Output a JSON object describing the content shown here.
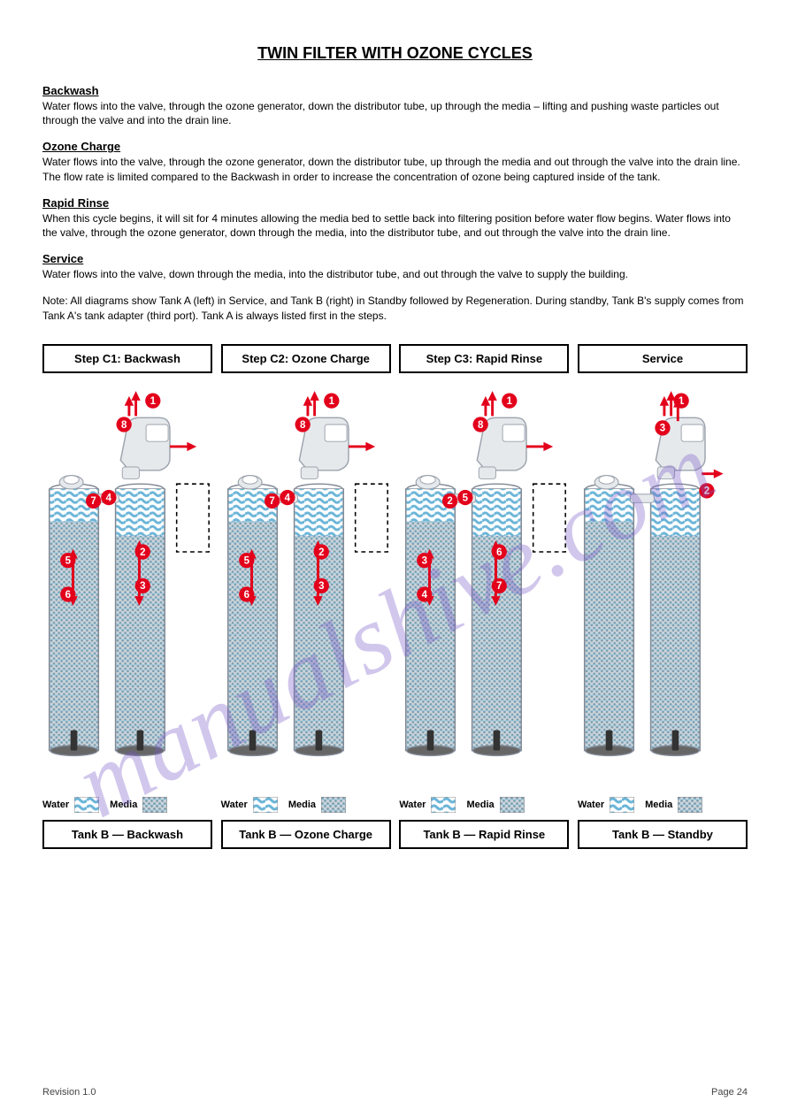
{
  "title": "TWIN FILTER WITH OZONE CYCLES",
  "phases": [
    {
      "id": "backwash",
      "label": "Backwash",
      "desc": "Water flows into the valve, through the ozone generator, down the distributor tube, up through the media – lifting and pushing waste particles out through the valve and into the drain line."
    },
    {
      "id": "ozone-charge",
      "label": "Ozone Charge",
      "desc": "Water flows into the valve, through the ozone generator, down the distributor tube, up through the media and out through the valve into the drain line. The flow rate is limited compared to the Backwash in order to increase the concentration of ozone being captured inside of the tank."
    },
    {
      "id": "rapid-rinse",
      "label": "Rapid Rinse",
      "desc": "When this cycle begins, it will sit for 4 minutes allowing the media bed to settle back into filtering position before water flow begins. Water flows into the valve, through the ozone generator, down through the media, into the distributor tube, and out through the valve into the drain line."
    },
    {
      "id": "service",
      "label": "Service",
      "desc": "Water flows into the valve, down through the media, into the distributor tube, and out through the valve to supply the building."
    }
  ],
  "note": "Note: All diagrams show Tank A (left) in Service, and Tank B (right) in Standby followed by Regeneration. During standby, Tank B's supply comes from Tank A's tank adapter (third port). Tank A is always listed first in the steps.",
  "columns": [
    {
      "top": "Step C1: Backwash",
      "bottom": "Tank B — Backwash",
      "numbers": [
        "1",
        "8",
        "4",
        "7",
        "5",
        "6",
        "2",
        "3"
      ],
      "offset_box": true,
      "rightArrowFromValve": true
    },
    {
      "top": "Step C2: Ozone Charge",
      "bottom": "Tank B — Ozone Charge",
      "numbers": [
        "1",
        "8",
        "4",
        "7",
        "5",
        "6",
        "2",
        "3"
      ],
      "offset_box": true,
      "rightArrowFromValve": true
    },
    {
      "top": "Step C3: Rapid Rinse",
      "bottom": "Tank B — Rapid Rinse",
      "numbers": [
        "1",
        "8",
        "5",
        "2",
        "3",
        "4",
        "6",
        "7"
      ],
      "offset_box": true,
      "rightArrowFromValve": true
    },
    {
      "top": "Service",
      "bottom": "Tank B — Standby",
      "numbers": [
        "1",
        "3",
        "2"
      ],
      "offset_box": false,
      "rightArrowFromValve": false
    }
  ],
  "legend": {
    "water": "Water",
    "media": "Media"
  },
  "colors": {
    "red": "#e3001b",
    "blue_water": "#6bb5d8",
    "media_dark": "#7b94a3",
    "media_light": "#c9d4db",
    "tank_outline": "#808894",
    "valve_body": "#e6e9ec",
    "valve_outline": "#9ca3ad",
    "watermark": "rgba(120,90,200,0.34)"
  },
  "footer": {
    "left": "Revision 1.0",
    "right": "Page 24"
  },
  "watermark": "manualshive.com"
}
